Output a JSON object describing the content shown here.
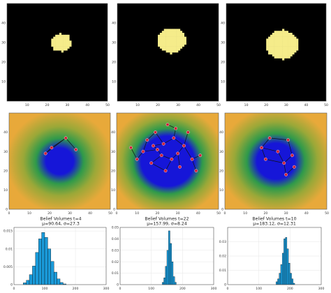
{
  "figure": {
    "colors": {
      "grid_bg": "#000000",
      "blob": "#f5ec8a",
      "field_outer": "#e8a93a",
      "field_mid": "#9aa838",
      "field_green": "#2f9a4a",
      "field_core": "#1616d8",
      "node": "#d0203a",
      "edge": "#111111",
      "bar": "#1a9ad9",
      "bar_edge": "#000000",
      "axis": "#555555",
      "gridline": "#e6e6e6"
    }
  },
  "panels": [
    {
      "title": "",
      "subtitle": ""
    },
    {
      "title": "",
      "subtitle": ""
    },
    {
      "title": "",
      "subtitle": ""
    },
    {
      "title": "",
      "subtitle": ""
    },
    {
      "title": "",
      "subtitle": ""
    },
    {
      "title": "",
      "subtitle": ""
    },
    {
      "title": "Belief Volumes t=4",
      "subtitle": "μ=90.64, σ=27.3"
    },
    {
      "title": "Belief Volumes t=22",
      "subtitle": "μ=157.99, σ=8.24"
    },
    {
      "title": "Belief Volumes t=10",
      "subtitle": "μ=183.12, σ=12.31"
    }
  ],
  "chart_data": [
    {
      "type": "heatmap",
      "panel": "occupancy-t4",
      "xlim": [
        0,
        50
      ],
      "ylim": [
        0,
        50
      ],
      "xticks": [
        10,
        20,
        30,
        40,
        50
      ],
      "yticks": [
        10,
        20,
        30,
        40
      ],
      "region_center": [
        27,
        30
      ],
      "region_radius": 5
    },
    {
      "type": "heatmap",
      "panel": "occupancy-t22",
      "xlim": [
        0,
        50
      ],
      "ylim": [
        0,
        50
      ],
      "xticks": [
        10,
        20,
        30,
        40,
        50
      ],
      "yticks": [
        10,
        20,
        30,
        40
      ],
      "region_center": [
        27,
        31
      ],
      "region_radius": 7
    },
    {
      "type": "heatmap",
      "panel": "occupancy-t10",
      "xlim": [
        0,
        50
      ],
      "ylim": [
        0,
        50
      ],
      "xticks": [
        10,
        20,
        30,
        40,
        50
      ],
      "yticks": [
        10,
        20,
        30,
        40
      ],
      "region_center": [
        28,
        29
      ],
      "region_radius": 8
    },
    {
      "type": "scatter",
      "panel": "field-t4",
      "xlim": [
        0,
        50
      ],
      "ylim": [
        0,
        50
      ],
      "xticks": [
        0,
        10,
        20,
        30,
        40,
        50
      ],
      "yticks": [
        0,
        10,
        20,
        30,
        40
      ],
      "points": [
        [
          18,
          29
        ],
        [
          21,
          32
        ],
        [
          28,
          37
        ],
        [
          33,
          31
        ]
      ],
      "edges": [
        [
          0,
          1
        ],
        [
          1,
          2
        ],
        [
          2,
          3
        ],
        [
          0,
          2
        ]
      ]
    },
    {
      "type": "scatter",
      "panel": "field-t22",
      "xlim": [
        0,
        50
      ],
      "ylim": [
        0,
        50
      ],
      "xticks": [
        0,
        10,
        20,
        30,
        40,
        50
      ],
      "yticks": [
        0,
        10,
        20,
        30,
        40
      ],
      "points": [
        [
          7,
          32
        ],
        [
          10,
          26
        ],
        [
          13,
          30
        ],
        [
          15,
          36
        ],
        [
          17,
          24
        ],
        [
          19,
          40
        ],
        [
          20,
          31
        ],
        [
          22,
          28
        ],
        [
          23,
          34
        ],
        [
          24,
          20
        ],
        [
          25,
          44
        ],
        [
          27,
          26
        ],
        [
          28,
          37
        ],
        [
          30,
          29
        ],
        [
          31,
          22
        ],
        [
          33,
          33
        ],
        [
          35,
          40
        ],
        [
          37,
          26
        ],
        [
          39,
          20
        ],
        [
          41,
          28
        ],
        [
          29,
          42
        ],
        [
          18,
          33
        ]
      ],
      "edges": [
        [
          0,
          1
        ],
        [
          1,
          2
        ],
        [
          2,
          3
        ],
        [
          2,
          6
        ],
        [
          3,
          5
        ],
        [
          4,
          7
        ],
        [
          5,
          8
        ],
        [
          6,
          7
        ],
        [
          6,
          21
        ],
        [
          7,
          11
        ],
        [
          8,
          12
        ],
        [
          9,
          11
        ],
        [
          10,
          20
        ],
        [
          11,
          13
        ],
        [
          12,
          15
        ],
        [
          13,
          14
        ],
        [
          13,
          15
        ],
        [
          15,
          16
        ],
        [
          15,
          17
        ],
        [
          17,
          18
        ],
        [
          17,
          19
        ],
        [
          12,
          20
        ],
        [
          8,
          21
        ],
        [
          4,
          9
        ]
      ]
    },
    {
      "type": "scatter",
      "panel": "field-t10",
      "xlim": [
        0,
        50
      ],
      "ylim": [
        0,
        50
      ],
      "xticks": [
        0,
        10,
        20,
        30,
        40,
        50
      ],
      "yticks": [
        0,
        10,
        20,
        30,
        40
      ],
      "points": [
        [
          18,
          32
        ],
        [
          22,
          37
        ],
        [
          26,
          30
        ],
        [
          29,
          24
        ],
        [
          31,
          36
        ],
        [
          33,
          28
        ],
        [
          30,
          18
        ],
        [
          34,
          22
        ],
        [
          20,
          26
        ]
      ],
      "edges": [
        [
          0,
          1
        ],
        [
          1,
          4
        ],
        [
          0,
          2
        ],
        [
          2,
          3
        ],
        [
          3,
          5
        ],
        [
          4,
          5
        ],
        [
          3,
          6
        ],
        [
          6,
          7
        ],
        [
          0,
          8
        ],
        [
          8,
          3
        ]
      ]
    },
    {
      "type": "bar",
      "panel": "hist-t4",
      "xlim": [
        0,
        300
      ],
      "ylim": [
        0,
        0.016
      ],
      "xticks": [
        0,
        100,
        200,
        300
      ],
      "yticks": [
        0,
        0.005,
        0.01,
        0.015
      ],
      "bin_width": 10,
      "bin_starts": [
        30,
        40,
        50,
        60,
        70,
        80,
        90,
        100,
        110,
        120,
        130,
        140,
        150,
        160
      ],
      "values": [
        0.0005,
        0.0012,
        0.0028,
        0.0052,
        0.009,
        0.0128,
        0.0146,
        0.0132,
        0.01,
        0.0065,
        0.0035,
        0.0016,
        0.0006,
        0.0002
      ]
    },
    {
      "type": "bar",
      "panel": "hist-t22",
      "xlim": [
        0,
        300
      ],
      "ylim": [
        0,
        0.05
      ],
      "xticks": [
        0,
        100,
        200,
        300
      ],
      "yticks": [
        0,
        0.01,
        0.02,
        0.03,
        0.04,
        0.05
      ],
      "bin_width": 5,
      "bin_starts": [
        135,
        140,
        145,
        150,
        155,
        160,
        165,
        170,
        175
      ],
      "values": [
        0.002,
        0.006,
        0.016,
        0.03,
        0.047,
        0.036,
        0.02,
        0.007,
        0.002
      ]
    },
    {
      "type": "bar",
      "panel": "hist-t10",
      "xlim": [
        0,
        300
      ],
      "ylim": [
        0,
        0.04
      ],
      "xticks": [
        0,
        100,
        200,
        300
      ],
      "yticks": [
        0,
        0.01,
        0.02,
        0.03
      ],
      "bin_width": 5,
      "bin_starts": [
        155,
        160,
        165,
        170,
        175,
        180,
        185,
        190,
        195,
        200,
        205,
        210
      ],
      "values": [
        0.002,
        0.004,
        0.008,
        0.014,
        0.022,
        0.032,
        0.033,
        0.025,
        0.015,
        0.008,
        0.004,
        0.001
      ]
    }
  ]
}
